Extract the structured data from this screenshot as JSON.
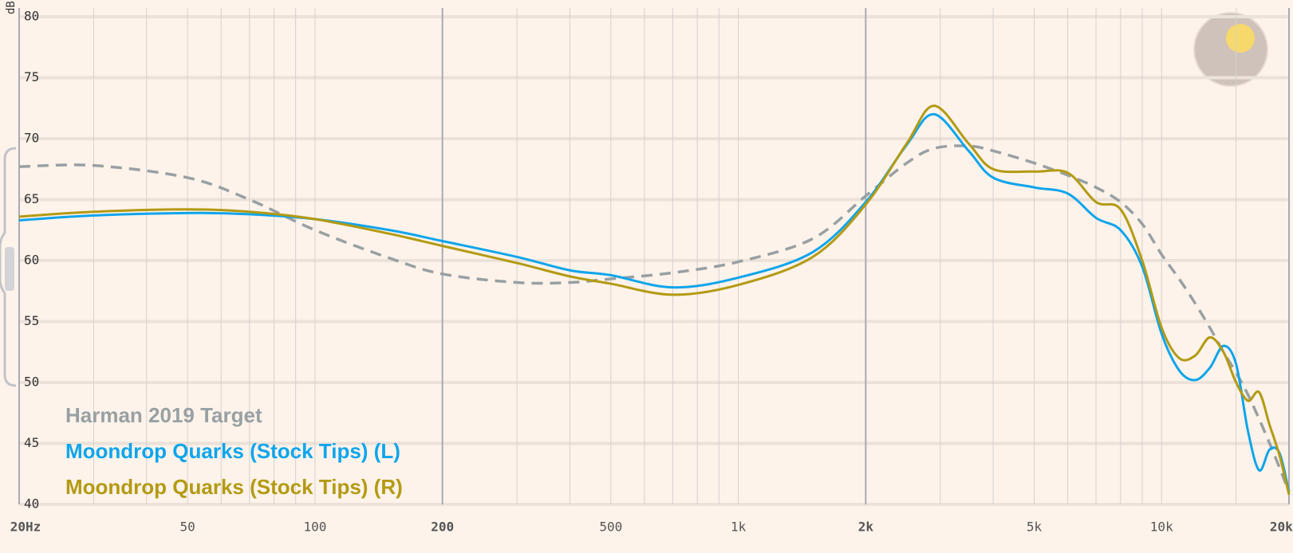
{
  "chart_data": {
    "type": "line",
    "log_x": true,
    "y_axis_label": "dB",
    "x": [
      20,
      30,
      50,
      70,
      100,
      150,
      200,
      300,
      400,
      500,
      700,
      1000,
      1500,
      2000,
      2500,
      2900,
      3500,
      4000,
      5000,
      6000,
      7000,
      8000,
      9000,
      10000,
      11000,
      12000,
      13000,
      14000,
      15000,
      16000,
      17000,
      18000,
      19000,
      20000
    ],
    "series": [
      {
        "name": "Harman 2019 Target",
        "color": "#98a0a3",
        "dashed": true,
        "values": [
          67.7,
          67.8,
          66.8,
          65.0,
          62.5,
          60.2,
          58.9,
          58.2,
          58.2,
          58.5,
          59.0,
          59.9,
          61.8,
          65.3,
          68.0,
          69.2,
          69.4,
          69.0,
          68.0,
          67.0,
          66.0,
          64.8,
          63.0,
          60.5,
          58.5,
          56.5,
          54.5,
          52.5,
          50.8,
          49.0,
          47,
          45,
          43,
          41
        ]
      },
      {
        "name": "Moondrop Quarks (Stock Tips) (L)",
        "color": "#0ea5ec",
        "values": [
          63.3,
          63.7,
          63.9,
          63.8,
          63.4,
          62.5,
          61.6,
          60.3,
          59.2,
          58.8,
          57.8,
          58.6,
          60.7,
          64.8,
          69.5,
          72.0,
          69.0,
          66.8,
          66.0,
          65.5,
          63.5,
          62.5,
          59.5,
          54.0,
          51.0,
          50.2,
          51.2,
          53.0,
          51.5,
          46.0,
          42.8,
          44.5,
          44.2,
          41.0
        ]
      },
      {
        "name": "Moondrop Quarks (Stock Tips) (R)",
        "color": "#b39a12",
        "values": [
          63.6,
          64.0,
          64.2,
          64.0,
          63.4,
          62.2,
          61.2,
          59.8,
          58.7,
          58.1,
          57.2,
          58.0,
          60.3,
          64.6,
          69.6,
          72.7,
          69.6,
          67.5,
          67.3,
          67.2,
          64.8,
          64.2,
          60.0,
          54.5,
          52.0,
          52.2,
          53.7,
          52.5,
          50.0,
          48.5,
          49.2,
          46.5,
          44.0,
          40.8
        ]
      }
    ],
    "xlim": [
      20,
      20000
    ],
    "ylim": [
      40,
      80
    ],
    "xticks": [
      {
        "value": 20,
        "label": "20Hz"
      },
      50,
      100,
      200,
      500,
      {
        "value": 1000,
        "label": "1k"
      },
      {
        "value": 2000,
        "label": "2k"
      },
      {
        "value": 5000,
        "label": "5k"
      },
      {
        "value": 10000,
        "label": "10k"
      },
      {
        "value": 20000,
        "label": "20kHz"
      }
    ],
    "x_minor_grid": [
      30,
      40,
      60,
      70,
      80,
      90,
      300,
      400,
      600,
      700,
      800,
      900,
      3000,
      4000,
      6000,
      7000,
      8000,
      9000,
      15000
    ],
    "yticks": [
      40,
      45,
      50,
      55,
      60,
      65,
      70,
      75,
      80
    ],
    "grid": true
  }
}
